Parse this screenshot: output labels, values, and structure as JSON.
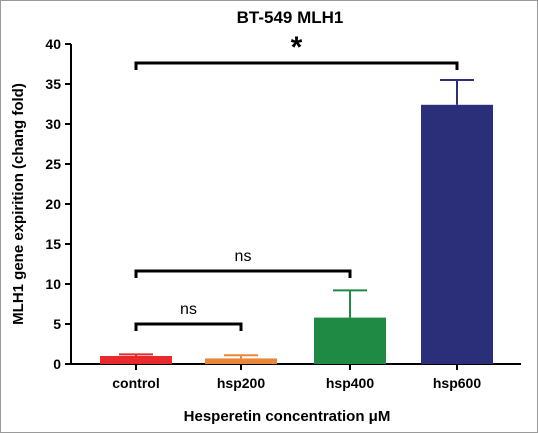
{
  "chart_data": {
    "type": "bar",
    "title": "BT-549 MLH1",
    "xlabel": "Hesperetin concentration μM",
    "ylabel": "MLH1 gene expirition (chang fold)",
    "ylim": [
      0,
      40
    ],
    "yticks": [
      0,
      5,
      10,
      15,
      20,
      25,
      30,
      35,
      40
    ],
    "categories": [
      "control",
      "hsp200",
      "hsp400",
      "hsp600"
    ],
    "values": [
      1.0,
      0.7,
      5.8,
      32.4
    ],
    "errors": [
      0.2,
      0.4,
      3.4,
      3.1
    ],
    "colors": [
      "#e8292c",
      "#e8873a",
      "#1f8a44",
      "#2b2f7a"
    ],
    "significance": [
      {
        "from": 0,
        "to": 1,
        "label": "ns"
      },
      {
        "from": 0,
        "to": 2,
        "label": "ns"
      },
      {
        "from": 0,
        "to": 3,
        "label": "*"
      }
    ],
    "grid": false
  }
}
